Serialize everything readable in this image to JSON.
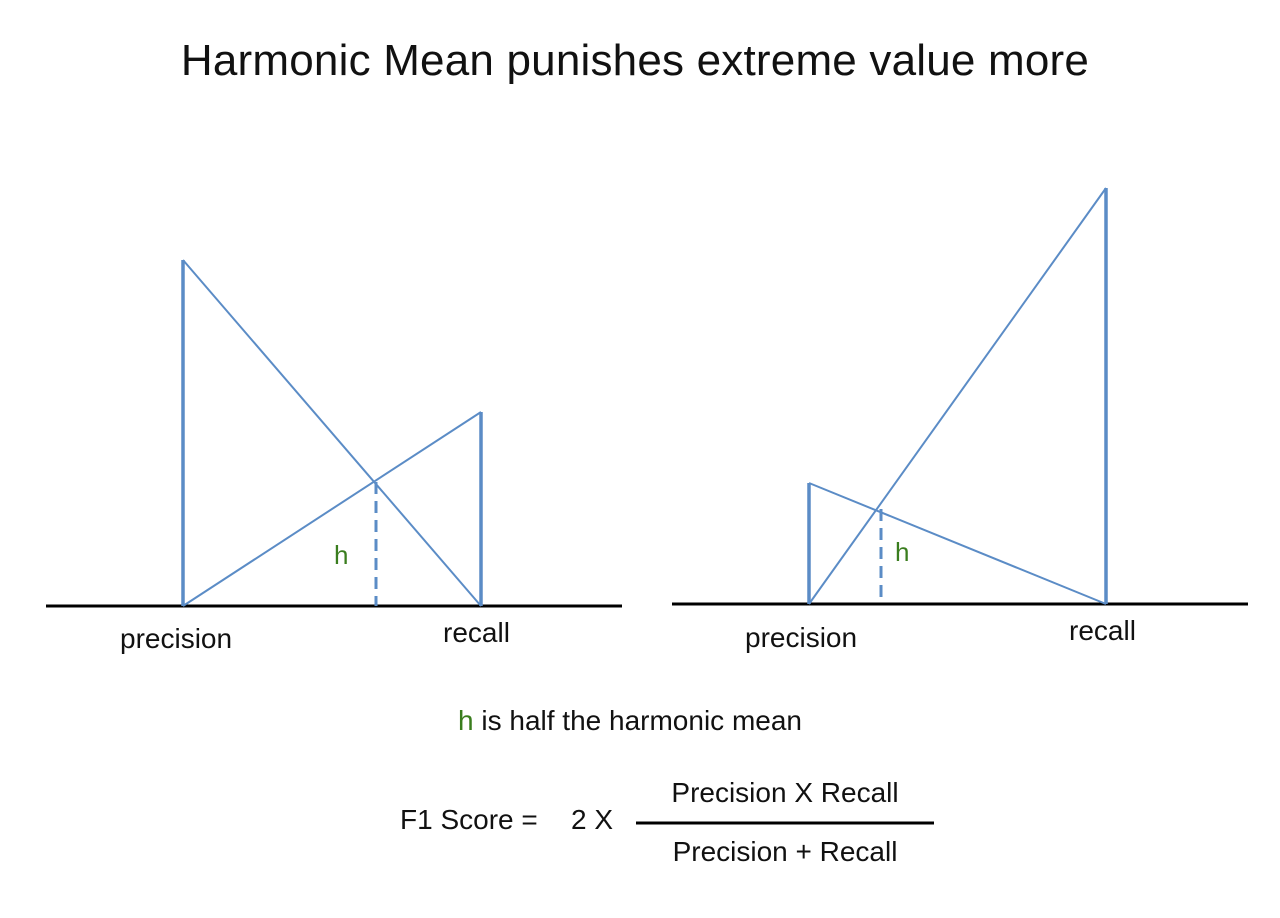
{
  "title": "Harmonic Mean punishes extreme value more",
  "colors": {
    "triangle_lines": "#5b8cc6",
    "baseline": "#000000",
    "h_label": "#3a7d1e",
    "text": "#111111"
  },
  "panels": [
    {
      "precision_label": "precision",
      "recall_label": "recall",
      "h_label": "h",
      "precision_value": 1.0,
      "recall_value": 0.56
    },
    {
      "precision_label": "precision",
      "recall_label": "recall",
      "h_label": "h",
      "precision_value": 0.3,
      "recall_value": 1.0
    }
  ],
  "caption": {
    "h": "h",
    "text": " is half the harmonic mean"
  },
  "formula": {
    "lhs": "F1 Score =",
    "factor": "2 X",
    "numerator": "Precision X Recall",
    "denominator": "Precision + Recall"
  }
}
